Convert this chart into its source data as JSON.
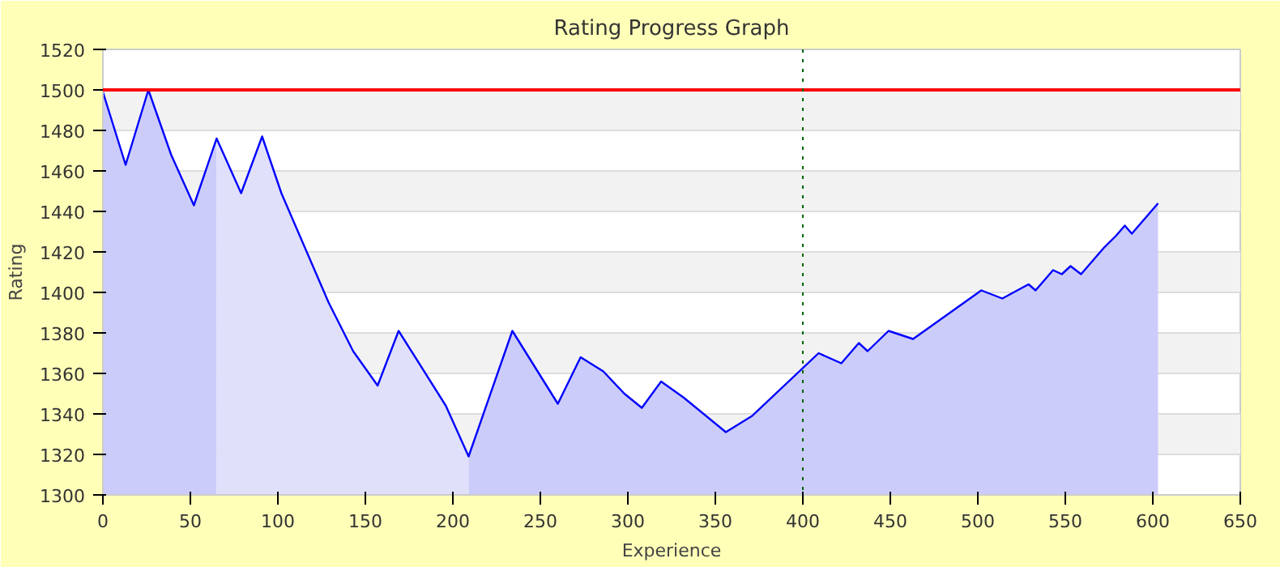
{
  "chart_data": {
    "type": "area",
    "title": "Rating Progress Graph",
    "xlabel": "Experience",
    "ylabel": "Rating",
    "xlim": [
      0,
      650
    ],
    "ylim": [
      1300,
      1520
    ],
    "xticks": [
      0,
      50,
      100,
      150,
      200,
      250,
      300,
      350,
      400,
      450,
      500,
      550,
      600,
      650
    ],
    "yticks": [
      1300,
      1320,
      1340,
      1360,
      1380,
      1400,
      1420,
      1440,
      1460,
      1480,
      1500,
      1520
    ],
    "grid": "y",
    "series": [
      {
        "color": "#ccccfa",
        "x": [
          0,
          13,
          26,
          39,
          52,
          65
        ],
        "values": [
          1499,
          1463,
          1500,
          1468,
          1443,
          1476
        ]
      },
      {
        "color": "#e0e0fa",
        "x": [
          65,
          79,
          91,
          102,
          129,
          143,
          157,
          169,
          196,
          209
        ],
        "values": [
          1476,
          1449,
          1477,
          1449,
          1395,
          1371,
          1354,
          1381,
          1344,
          1319
        ]
      },
      {
        "color": "#ccccfa",
        "x": [
          209,
          234,
          260,
          273,
          286,
          298,
          308,
          319,
          332,
          356,
          371,
          409,
          422,
          432,
          437,
          449,
          463,
          502,
          514,
          529,
          533,
          543,
          548,
          553,
          559,
          572,
          579,
          584,
          588,
          603
        ],
        "values": [
          1319,
          1381,
          1345,
          1368,
          1361,
          1350,
          1343,
          1356,
          1348,
          1331,
          1339,
          1370,
          1365,
          1375,
          1371,
          1381,
          1377,
          1401,
          1397,
          1404,
          1401,
          1411,
          1409,
          1413,
          1409,
          1422,
          1428,
          1433,
          1429,
          1444
        ]
      },
      {
        "type": "line",
        "color": "#0000ff",
        "x": [
          0,
          13,
          26,
          39,
          52,
          65,
          79,
          91,
          102,
          129,
          143,
          157,
          169,
          196,
          209,
          234,
          260,
          273,
          286,
          298,
          308,
          319,
          332,
          356,
          371,
          409,
          422,
          432,
          437,
          449,
          463,
          502,
          514,
          529,
          533,
          543,
          548,
          553,
          559,
          572,
          579,
          584,
          588,
          603
        ],
        "values": [
          1499,
          1463,
          1500,
          1468,
          1443,
          1476,
          1449,
          1477,
          1449,
          1395,
          1371,
          1354,
          1381,
          1344,
          1319,
          1381,
          1345,
          1368,
          1361,
          1350,
          1343,
          1356,
          1348,
          1331,
          1339,
          1370,
          1365,
          1375,
          1371,
          1381,
          1377,
          1401,
          1397,
          1404,
          1401,
          1411,
          1409,
          1413,
          1409,
          1422,
          1428,
          1433,
          1429,
          1444
        ]
      }
    ],
    "ref_lines": [
      {
        "axis": "y",
        "value": 1500,
        "color": "#ff0000",
        "line_style": "solid"
      },
      {
        "axis": "x",
        "value": 400,
        "color": "#006400",
        "line_style": "dotted"
      }
    ]
  }
}
